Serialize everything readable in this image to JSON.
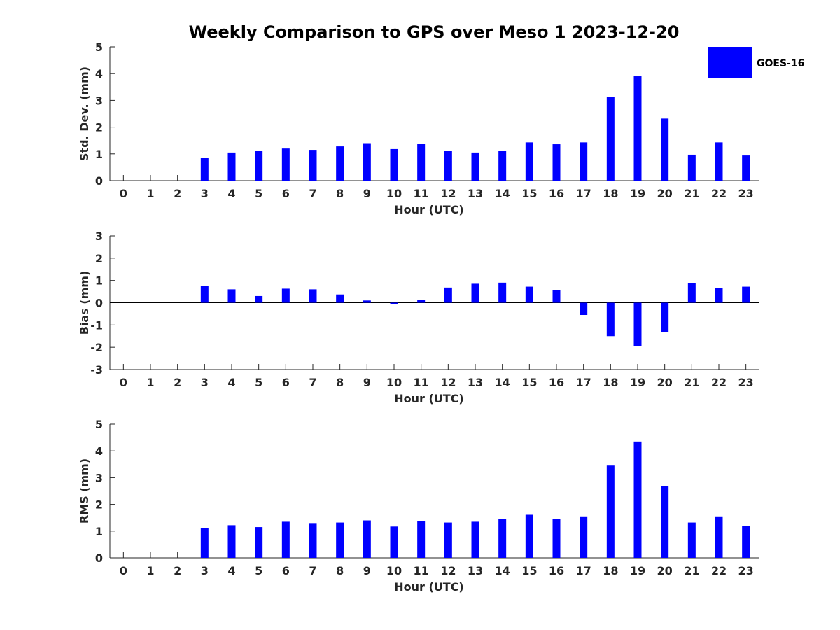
{
  "chart_data": {
    "type": "bar",
    "title": "Weekly Comparison to GPS over Meso 1 2023-12-20",
    "legend": {
      "entries": [
        "GOES-16"
      ],
      "placement": "top-right",
      "color": "#0000ff"
    },
    "bar_color": "#0000ff",
    "panels": [
      {
        "id": "std",
        "ylabel": "Std. Dev. (mm)",
        "xlabel": "Hour (UTC)",
        "ylim": [
          0,
          5
        ],
        "yticks": [
          0,
          1,
          2,
          3,
          4,
          5
        ],
        "x": [
          0,
          1,
          2,
          3,
          4,
          5,
          6,
          7,
          8,
          9,
          10,
          11,
          12,
          13,
          14,
          15,
          16,
          17,
          18,
          19,
          20,
          21,
          22,
          23
        ],
        "series": [
          {
            "name": "GOES-16",
            "values": [
              null,
              null,
              null,
              0.84,
              1.05,
              1.1,
              1.2,
              1.15,
              1.28,
              1.4,
              1.18,
              1.38,
              1.1,
              1.05,
              1.12,
              1.43,
              1.36,
              1.43,
              3.14,
              3.9,
              2.32,
              0.97,
              1.43,
              0.94
            ]
          }
        ]
      },
      {
        "id": "bias",
        "ylabel": "Bias (mm)",
        "xlabel": "Hour (UTC)",
        "ylim": [
          -3,
          3
        ],
        "yticks": [
          -3,
          -2,
          -1,
          0,
          1,
          2,
          3
        ],
        "x": [
          0,
          1,
          2,
          3,
          4,
          5,
          6,
          7,
          8,
          9,
          10,
          11,
          12,
          13,
          14,
          15,
          16,
          17,
          18,
          19,
          20,
          21,
          22,
          23
        ],
        "series": [
          {
            "name": "GOES-16",
            "values": [
              null,
              null,
              null,
              0.75,
              0.6,
              0.3,
              0.63,
              0.6,
              0.37,
              0.1,
              -0.05,
              0.13,
              0.68,
              0.85,
              0.9,
              0.72,
              0.57,
              -0.55,
              -1.5,
              -1.95,
              -1.33,
              0.88,
              0.65,
              0.72
            ]
          }
        ]
      },
      {
        "id": "rms",
        "ylabel": "RMS (mm)",
        "xlabel": "Hour (UTC)",
        "ylim": [
          0,
          5
        ],
        "yticks": [
          0,
          1,
          2,
          3,
          4,
          5
        ],
        "x": [
          0,
          1,
          2,
          3,
          4,
          5,
          6,
          7,
          8,
          9,
          10,
          11,
          12,
          13,
          14,
          15,
          16,
          17,
          18,
          19,
          20,
          21,
          22,
          23
        ],
        "series": [
          {
            "name": "GOES-16",
            "values": [
              null,
              null,
              null,
              1.11,
              1.22,
              1.15,
              1.35,
              1.3,
              1.32,
              1.4,
              1.17,
              1.37,
              1.32,
              1.35,
              1.45,
              1.61,
              1.45,
              1.55,
              3.45,
              4.35,
              2.67,
              1.32,
              1.55,
              1.2
            ]
          }
        ]
      }
    ]
  }
}
